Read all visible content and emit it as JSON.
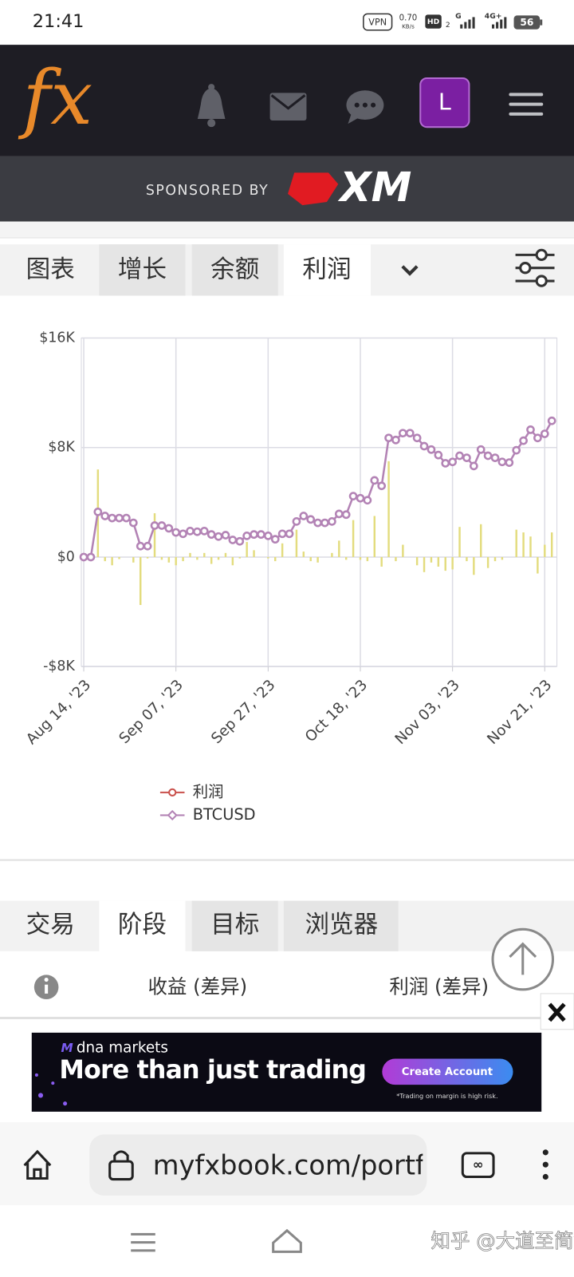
{
  "status_bar": {
    "time": "21:41",
    "vpn": "VPN",
    "speed": "0.70",
    "speed_unit": "KB/s",
    "hd": "HD",
    "sim": "2",
    "network": "G",
    "network2": "4G+",
    "battery": "56"
  },
  "header": {
    "logo": "fx",
    "avatar": "L"
  },
  "sponsor": {
    "label": "SPONSORED BY",
    "brand": "XM"
  },
  "chart_tabs": {
    "items": [
      "图表",
      "增长",
      "余额",
      "利润"
    ]
  },
  "chart_data": {
    "type": "combo",
    "categories": [
      "Aug 14, '23",
      null,
      null,
      null,
      null,
      null,
      null,
      null,
      null,
      null,
      null,
      null,
      null,
      "Sep 07, '23",
      null,
      null,
      null,
      null,
      null,
      null,
      null,
      null,
      null,
      null,
      null,
      null,
      "Sep 27, '23",
      null,
      null,
      null,
      null,
      null,
      null,
      null,
      null,
      null,
      null,
      null,
      null,
      "Oct 18, '23",
      null,
      null,
      null,
      null,
      null,
      null,
      null,
      null,
      null,
      null,
      null,
      null,
      "Nov 03, '23",
      null,
      null,
      null,
      null,
      null,
      null,
      null,
      null,
      null,
      null,
      null,
      null,
      "Nov 21, '23",
      null
    ],
    "series": [
      {
        "name": "利润",
        "type": "bar",
        "color": "#e3dc7e",
        "legend_color": "#c9504b",
        "values": [
          0,
          0,
          6400,
          -300,
          -600,
          -150,
          0,
          -400,
          -3500,
          -100,
          3200,
          -200,
          -400,
          -600,
          -300,
          300,
          -200,
          300,
          -500,
          -200,
          300,
          -600,
          -100,
          1100,
          500,
          0,
          -100,
          -300,
          1000,
          0,
          2000,
          400,
          -300,
          -400,
          0,
          300,
          1200,
          -200,
          2700,
          -200,
          -300,
          3000,
          -700,
          7000,
          -300,
          900,
          0,
          -600,
          -1100,
          -400,
          -700,
          -1000,
          -900,
          2200,
          -300,
          -1300,
          2400,
          -800,
          -300,
          -200,
          0,
          2000,
          1800,
          1500,
          -1200,
          900,
          1800
        ]
      },
      {
        "name": "BTCUSD",
        "type": "line",
        "color": "#b383b5",
        "values": [
          0,
          0,
          3300,
          3000,
          2850,
          2850,
          2850,
          2500,
          800,
          800,
          2300,
          2300,
          2100,
          1800,
          1700,
          1900,
          1850,
          1900,
          1650,
          1500,
          1600,
          1250,
          1150,
          1550,
          1650,
          1650,
          1550,
          1300,
          1700,
          1700,
          2600,
          3000,
          2750,
          2500,
          2500,
          2600,
          3150,
          3100,
          4450,
          4300,
          4150,
          5600,
          5200,
          8700,
          8550,
          9050,
          9050,
          8700,
          8100,
          7850,
          7450,
          6850,
          6950,
          7400,
          7250,
          6650,
          7850,
          7400,
          7250,
          6950,
          6900,
          7800,
          8500,
          9300,
          8700,
          9000,
          9950
        ]
      }
    ],
    "ylim": [
      -8000,
      16000
    ],
    "yticks": [
      {
        "value": -8000,
        "label": "-$8K"
      },
      {
        "value": 0,
        "label": "$0"
      },
      {
        "value": 8000,
        "label": "$8K"
      },
      {
        "value": 16000,
        "label": "$16K"
      }
    ],
    "grid": true
  },
  "bottom_tabs": {
    "items": [
      "交易",
      "阶段",
      "目标",
      "浏览器"
    ]
  },
  "table_header": {
    "columns": [
      "收益 (差异)",
      "利润 (差异)"
    ]
  },
  "ad": {
    "brand": "dna markets",
    "headline": "More than just trading",
    "button": "Create Account",
    "disclaimer": "*Trading on margin is high risk."
  },
  "browser": {
    "url": "myfxbook.com/portf"
  },
  "watermark": "知乎 @大道至简vv"
}
